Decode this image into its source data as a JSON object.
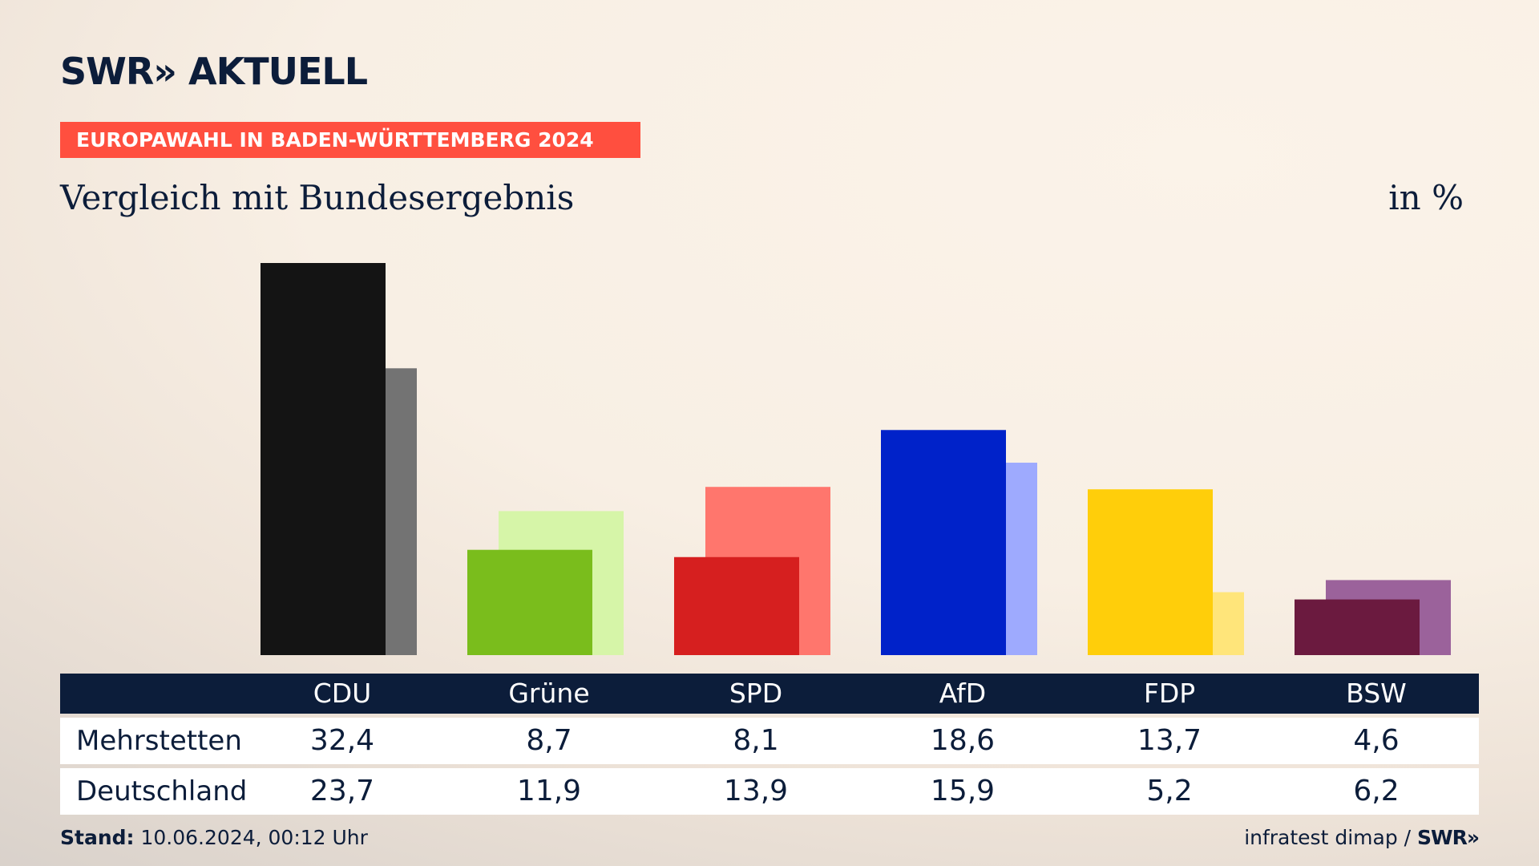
{
  "header": {
    "logo_text": "SWR» AKTUELL",
    "banner_text": "EUROPAWAHL IN BADEN-WÜRTTEMBERG 2024",
    "subtitle": "Vergleich mit Bundesergebnis",
    "unit": "in %",
    "banner_color": "#ff4f3f",
    "text_color": "#0c1d3a"
  },
  "chart_data": {
    "type": "bar",
    "title": "Vergleich mit Bundesergebnis",
    "ylabel": "in %",
    "ylim": [
      0,
      32.4
    ],
    "categories": [
      "CDU",
      "Grüne",
      "SPD",
      "AfD",
      "FDP",
      "BSW"
    ],
    "series": [
      {
        "name": "Mehrstetten",
        "values": [
          32.4,
          8.7,
          8.1,
          18.6,
          13.7,
          4.6
        ],
        "display": [
          "32,4",
          "8,7",
          "8,1",
          "18,6",
          "13,7",
          "4,6"
        ],
        "colors": [
          "#141414",
          "#7abd1c",
          "#d61f1f",
          "#0022c9",
          "#ffce0a",
          "#6b1a3f"
        ]
      },
      {
        "name": "Deutschland",
        "values": [
          23.7,
          11.9,
          13.9,
          15.9,
          5.2,
          6.2
        ],
        "display": [
          "23,7",
          "11,9",
          "13,9",
          "15,9",
          "5,2",
          "6,2"
        ],
        "colors": [
          "#737373",
          "#d6f5a8",
          "#ff766d",
          "#9eaafe",
          "#ffe57a",
          "#9b629b"
        ]
      }
    ],
    "grid": false,
    "legend": "none"
  },
  "table": {
    "header_bg": "#0c1d3a"
  },
  "footer": {
    "stand_label": "Stand:",
    "stand_value": "10.06.2024, 00:12 Uhr",
    "source": "infratest dimap /",
    "swr_logo": "SWR»"
  }
}
